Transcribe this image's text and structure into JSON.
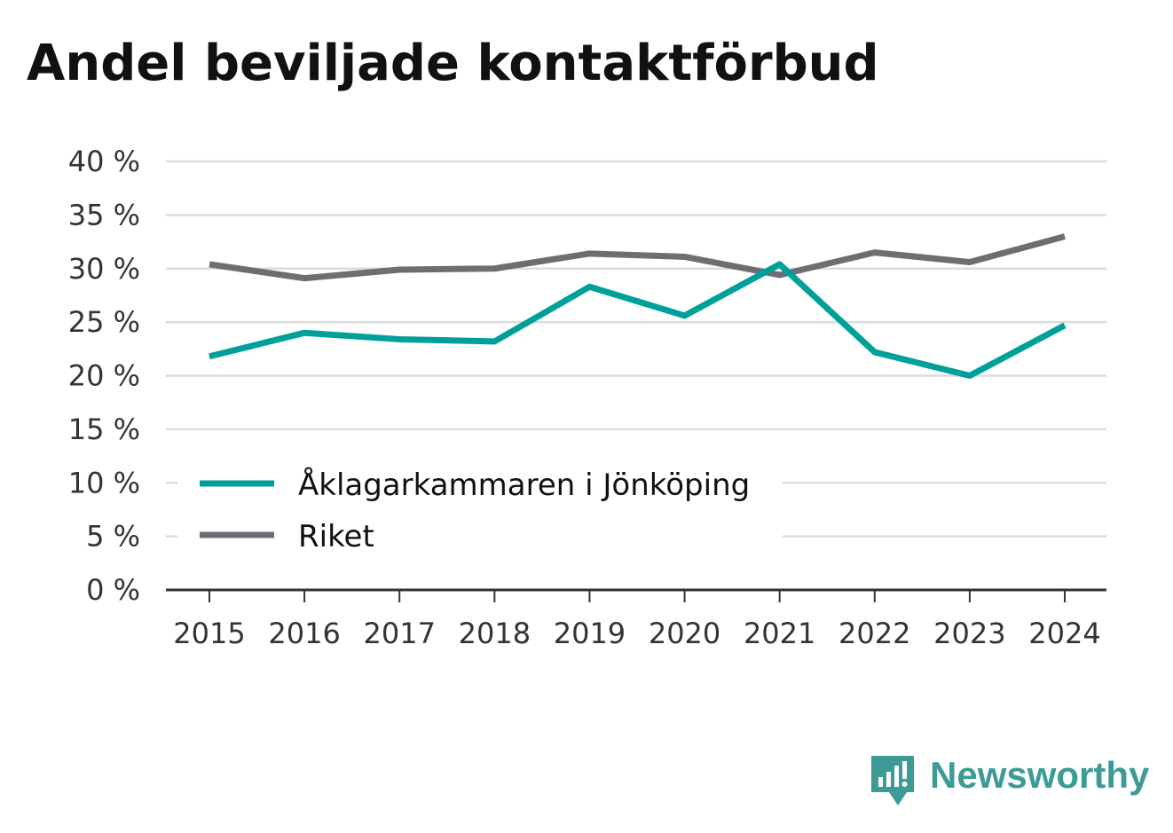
{
  "chart_data": {
    "type": "line",
    "title": "Andel beviljade kontaktförbud",
    "xlabel": "",
    "ylabel": "",
    "categories": [
      "2015",
      "2016",
      "2017",
      "2018",
      "2019",
      "2020",
      "2021",
      "2022",
      "2023",
      "2024"
    ],
    "ylim": [
      0,
      40
    ],
    "yticks": [
      0,
      5,
      10,
      15,
      20,
      25,
      30,
      35,
      40
    ],
    "ytick_labels": [
      "0 %",
      "5 %",
      "10 %",
      "15 %",
      "20 %",
      "25 %",
      "30 %",
      "35 %",
      "40 %"
    ],
    "grid": true,
    "legend_position": "lower-left",
    "series": [
      {
        "name": "Åklagarkammaren i Jönköping",
        "color": "#00a09a",
        "values": [
          21.8,
          24.0,
          23.4,
          23.2,
          28.3,
          25.6,
          30.4,
          22.2,
          20.0,
          24.7
        ]
      },
      {
        "name": "Riket",
        "color": "#6e6d73",
        "values": [
          30.4,
          29.1,
          29.9,
          30.0,
          31.4,
          31.1,
          29.4,
          31.5,
          30.6,
          33.0
        ]
      }
    ]
  },
  "brand": {
    "name": "Newsworthy",
    "icon": "newsworthy-logo-icon",
    "color": "#3d9b96"
  }
}
